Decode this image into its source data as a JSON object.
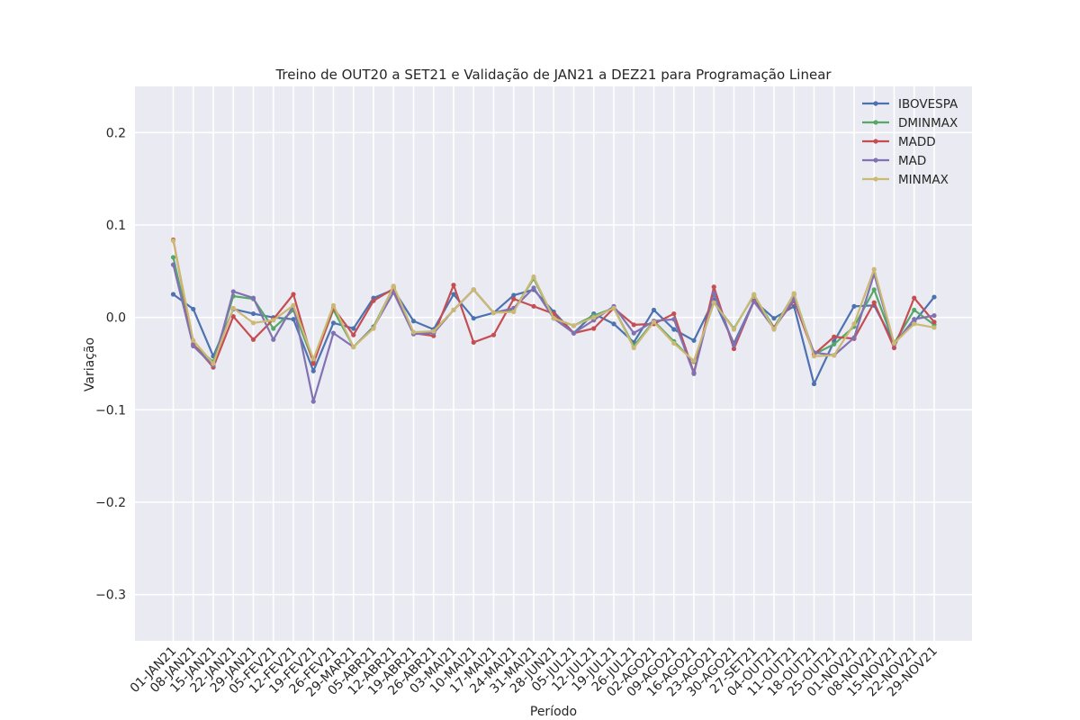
{
  "chart_data": {
    "type": "line",
    "title": "Treino de OUT20 a SET21 e Validação de JAN21 a DEZ21 para Programação Linear",
    "xlabel": "Período",
    "ylabel": "Variação",
    "ylim": [
      -0.35,
      0.25
    ],
    "yticks": [
      0.2,
      0.1,
      0.0,
      -0.1,
      -0.2,
      -0.3
    ],
    "ytick_labels": [
      "0.2",
      "0.1",
      "0.0",
      "−0.1",
      "−0.2",
      "−0.3"
    ],
    "grid": true,
    "legend_position": "top-right",
    "background": "#eaeaf2",
    "categories": [
      "01-JAN21",
      "08-JAN21",
      "15-JAN21",
      "22-JAN21",
      "29-JAN21",
      "05-FEV21",
      "12-FEV21",
      "19-FEV21",
      "26-FEV21",
      "29-MAR21",
      "05-ABR21",
      "12-ABR21",
      "19-ABR21",
      "26-ABR21",
      "03-MAI21",
      "10-MAI21",
      "17-MAI21",
      "24-MAI21",
      "31-MAI21",
      "28-JUN21",
      "05-JUL21",
      "12-JUL21",
      "19-JUL21",
      "26-JUL21",
      "02-AGO21",
      "09-AGO21",
      "16-AGO21",
      "23-AGO21",
      "30-AGO21",
      "27-SET21",
      "04-OUT21",
      "11-OUT21",
      "18-OUT21",
      "25-OUT21",
      "01-NOV21",
      "08-NOV21",
      "15-NOV21",
      "22-NOV21",
      "29-NOV21"
    ],
    "series": [
      {
        "name": "IBOVESPA",
        "color": "#4c72b0",
        "values": [
          0.025,
          0.009,
          -0.042,
          0.009,
          0.004,
          0.0,
          -0.002,
          -0.058,
          -0.006,
          -0.012,
          0.021,
          0.03,
          -0.004,
          -0.013,
          0.025,
          -0.001,
          0.005,
          0.024,
          0.03,
          0.006,
          -0.017,
          0.004,
          -0.007,
          -0.027,
          0.008,
          -0.013,
          -0.025,
          0.019,
          -0.028,
          0.018,
          -0.001,
          0.012,
          -0.072,
          -0.026,
          0.012,
          0.013,
          -0.028,
          -0.005,
          0.022
        ]
      },
      {
        "name": "DMINMAX",
        "color": "#55a868",
        "values": [
          0.065,
          -0.03,
          -0.048,
          0.023,
          0.02,
          -0.012,
          0.008,
          -0.048,
          0.008,
          -0.032,
          -0.01,
          0.033,
          -0.017,
          -0.015,
          0.008,
          0.03,
          0.005,
          0.008,
          0.042,
          -0.001,
          -0.009,
          0.002,
          0.01,
          -0.031,
          -0.004,
          -0.026,
          -0.048,
          0.016,
          -0.012,
          0.024,
          -0.011,
          0.025,
          -0.04,
          -0.029,
          -0.01,
          0.03,
          -0.028,
          0.008,
          -0.008
        ]
      },
      {
        "name": "MADD",
        "color": "#c44e52",
        "values": [
          0.084,
          -0.029,
          -0.054,
          0.001,
          -0.024,
          -0.002,
          0.025,
          -0.05,
          0.01,
          -0.019,
          0.018,
          0.031,
          -0.017,
          -0.02,
          0.035,
          -0.027,
          -0.019,
          0.02,
          0.012,
          0.004,
          -0.017,
          -0.012,
          0.01,
          -0.008,
          -0.007,
          0.004,
          -0.06,
          0.033,
          -0.034,
          0.018,
          -0.011,
          0.018,
          -0.04,
          -0.021,
          -0.023,
          0.016,
          -0.033,
          0.021,
          -0.005
        ]
      },
      {
        "name": "MAD",
        "color": "#8172b2",
        "values": [
          0.057,
          -0.031,
          -0.052,
          0.028,
          0.021,
          -0.024,
          0.013,
          -0.091,
          -0.017,
          -0.032,
          -0.011,
          0.027,
          -0.018,
          -0.017,
          0.008,
          0.03,
          0.005,
          0.01,
          0.032,
          -0.001,
          -0.017,
          -0.003,
          0.012,
          -0.017,
          -0.004,
          -0.002,
          -0.061,
          0.026,
          -0.03,
          0.017,
          -0.012,
          0.02,
          -0.038,
          -0.041,
          -0.022,
          0.047,
          -0.029,
          -0.002,
          0.002
        ]
      },
      {
        "name": "MINMAX",
        "color": "#ccb974",
        "values": [
          0.083,
          -0.025,
          -0.05,
          0.01,
          -0.006,
          -0.003,
          0.013,
          -0.045,
          0.013,
          -0.032,
          -0.012,
          0.034,
          -0.016,
          -0.015,
          0.008,
          0.03,
          0.005,
          0.006,
          0.044,
          -0.001,
          -0.009,
          0.0,
          0.01,
          -0.033,
          -0.005,
          -0.028,
          -0.047,
          0.016,
          -0.013,
          0.025,
          -0.013,
          0.026,
          -0.042,
          -0.041,
          -0.007,
          0.052,
          -0.028,
          -0.007,
          -0.011
        ]
      }
    ]
  }
}
